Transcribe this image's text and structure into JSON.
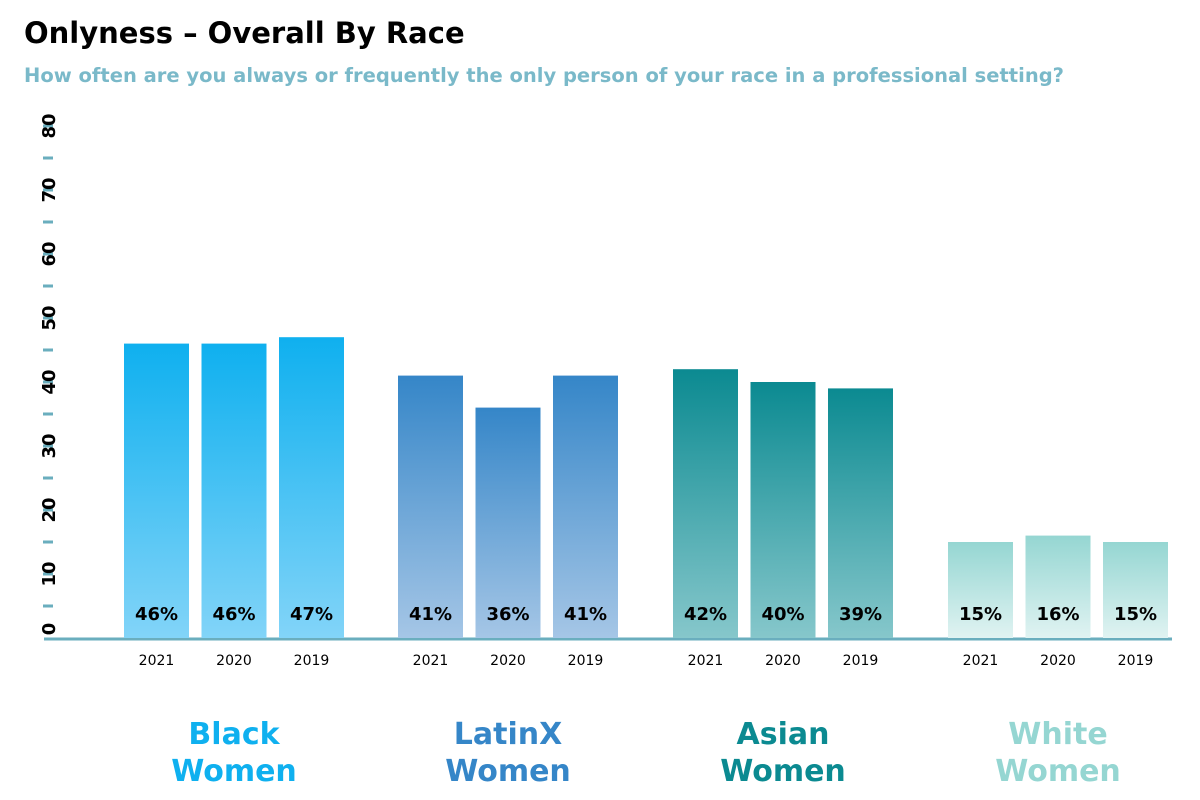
{
  "chart_data": {
    "type": "bar",
    "title": "Onlyness – Overall By Race",
    "subtitle": "How often are you always or frequently the only person of your race in a professional setting?",
    "xlabel": "",
    "ylabel": "",
    "ylim": [
      0,
      85
    ],
    "y_ticks": [
      "0",
      "10",
      "20",
      "30",
      "40",
      "50",
      "60",
      "70",
      "80"
    ],
    "groups": [
      {
        "name": "Black Women",
        "label_lines": [
          "Black",
          "Women"
        ],
        "categories": [
          "2021",
          "2020",
          "2019"
        ],
        "values": [
          46,
          46,
          47
        ],
        "value_labels": [
          "46%",
          "46%",
          "47%"
        ],
        "color_top": "#0fb0ef",
        "color_bottom": "#82d4f8"
      },
      {
        "name": "LatinX Women",
        "label_lines": [
          "LatinX",
          "Women"
        ],
        "categories": [
          "2021",
          "2020",
          "2019"
        ],
        "values": [
          41,
          36,
          41
        ],
        "value_labels": [
          "41%",
          "36%",
          "41%"
        ],
        "color_top": "#3586c8",
        "color_bottom": "#a5c6e6"
      },
      {
        "name": "Asian Women",
        "label_lines": [
          "Asian",
          "Women"
        ],
        "categories": [
          "2021",
          "2020",
          "2019"
        ],
        "values": [
          42,
          40,
          39
        ],
        "value_labels": [
          "42%",
          "40%",
          "39%"
        ],
        "color_top": "#0b8a91",
        "color_bottom": "#86c7cb"
      },
      {
        "name": "White Women",
        "label_lines": [
          "White",
          "Women"
        ],
        "categories": [
          "2021",
          "2020",
          "2019"
        ],
        "values": [
          15,
          16,
          15
        ],
        "value_labels": [
          "15%",
          "16%",
          "15%"
        ],
        "color_top": "#95d6d2",
        "color_bottom": "#e0f3f2"
      }
    ]
  },
  "colors": {
    "subtitle": "#7ab9c9",
    "axis": "#6aaebe",
    "text": "#000000"
  }
}
